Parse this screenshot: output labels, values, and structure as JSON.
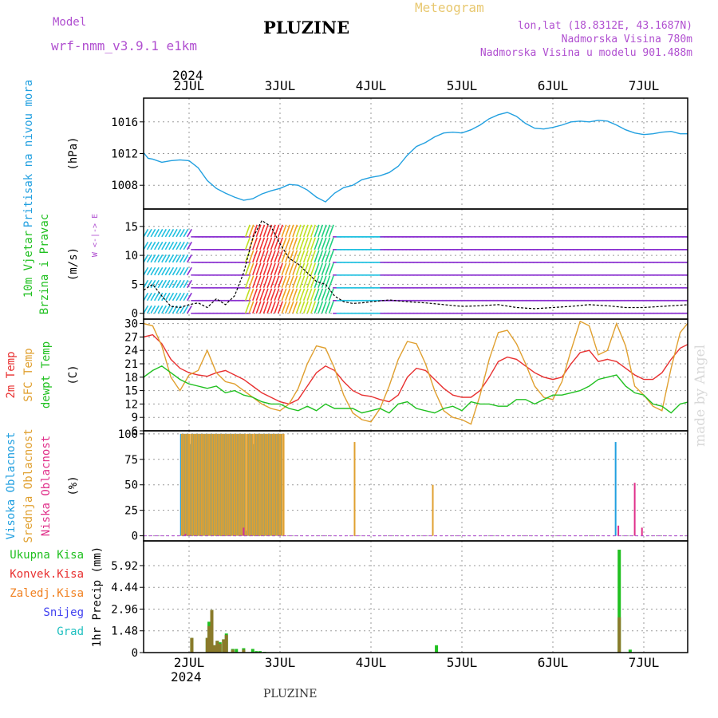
{
  "header": {
    "model_label": "Model",
    "model_name": "wrf-nmm_v3.9.1 e1km",
    "title": "PLUZINE",
    "product": "Meteogram",
    "lonlat": "lon,lat (18.8312E, 43.1687N)",
    "altitude": "Nadmorska Visina 780m",
    "model_altitude": "Nadmorska Visina u modelu 901.488m",
    "footer": "PLUZINE",
    "watermark": "made by Angel",
    "year_top": "2024",
    "year_bottom": "2024"
  },
  "colors": {
    "purple": "#b04fd0",
    "gold": "#e8c870",
    "pressure": "#22a0e0",
    "temp2m": "#e83030",
    "sfc": "#e0a030",
    "dewpt": "#20c020",
    "grid": "#9a9a9a"
  },
  "chart_data": [
    {
      "type": "line",
      "id": "pressure",
      "ylabel_lines": [
        "Pritisak na nivou mora"
      ],
      "ylabel_colors": [
        "#22a0e0"
      ],
      "unit": "(hPa)",
      "ylim": [
        1005,
        1019
      ],
      "yticks": [
        1008,
        1012,
        1016
      ],
      "x_categories": [
        "2JUL",
        "3JUL",
        "4JUL",
        "5JUL",
        "6JUL",
        "7JUL"
      ],
      "series": [
        {
          "color": "#22a0e0",
          "x": [
            -0.5,
            -0.45,
            -0.4,
            -0.3,
            -0.2,
            -0.1,
            0,
            0.1,
            0.2,
            0.3,
            0.4,
            0.5,
            0.6,
            0.7,
            0.8,
            0.9,
            1,
            1.1,
            1.2,
            1.3,
            1.4,
            1.5,
            1.6,
            1.7,
            1.8,
            1.9,
            2,
            2.1,
            2.2,
            2.3,
            2.4,
            2.5,
            2.6,
            2.7,
            2.8,
            2.9,
            3,
            3.1,
            3.2,
            3.3,
            3.4,
            3.5,
            3.6,
            3.7,
            3.8,
            3.9,
            4,
            4.1,
            4.2,
            4.3,
            4.4,
            4.5,
            4.6,
            4.7,
            4.8,
            4.9,
            5,
            5.1,
            5.2,
            5.3,
            5.4,
            5.5
          ],
          "y": [
            1012.1,
            1011.4,
            1011.3,
            1010.9,
            1011.1,
            1011.2,
            1011.1,
            1010.2,
            1008.6,
            1007.6,
            1007.0,
            1006.5,
            1006.1,
            1006.3,
            1006.9,
            1007.3,
            1007.6,
            1008.1,
            1008.0,
            1007.4,
            1006.5,
            1005.9,
            1007.0,
            1007.7,
            1008.0,
            1008.7,
            1009.0,
            1009.2,
            1009.6,
            1010.4,
            1011.8,
            1012.9,
            1013.4,
            1014.1,
            1014.6,
            1014.7,
            1014.6,
            1015.0,
            1015.6,
            1016.4,
            1016.9,
            1017.2,
            1016.7,
            1015.8,
            1015.2,
            1015.1,
            1015.3,
            1015.6,
            1016.0,
            1016.1,
            1016.0,
            1016.2,
            1016.1,
            1015.6,
            1015.0,
            1014.6,
            1014.4,
            1014.5,
            1014.7,
            1014.8,
            1014.5,
            1014.5
          ]
        }
      ]
    },
    {
      "type": "line",
      "id": "wind",
      "ylabel_lines": [
        "10m Vjetar",
        "Brzina i Pravac"
      ],
      "ylabel_colors": [
        "#20c020",
        "#20c020"
      ],
      "unit": "(m/s)",
      "compass": "W <-|-> E",
      "ylim": [
        -1,
        18
      ],
      "yticks": [
        0,
        5,
        10,
        15
      ],
      "series": [
        {
          "name": "speed",
          "color": "#000000",
          "x": [
            -0.5,
            -0.4,
            -0.3,
            -0.2,
            -0.1,
            0,
            0.1,
            0.2,
            0.3,
            0.4,
            0.5,
            0.6,
            0.7,
            0.8,
            0.9,
            1,
            1.1,
            1.2,
            1.3,
            1.4,
            1.5,
            1.6,
            1.7,
            1.8,
            1.9,
            2,
            2.2,
            2.4,
            2.6,
            2.8,
            3,
            3.2,
            3.4,
            3.6,
            3.8,
            4,
            4.2,
            4.4,
            4.6,
            4.8,
            5,
            5.2,
            5.5
          ],
          "y": [
            4,
            5,
            3,
            1.2,
            1,
            1.5,
            1.8,
            1,
            2.5,
            1.5,
            3,
            7,
            13,
            16,
            15,
            12,
            9.5,
            8.5,
            7,
            5.5,
            5,
            3,
            2,
            1.7,
            1.8,
            2,
            2.3,
            2,
            1.8,
            1.5,
            1.2,
            1.3,
            1.5,
            1,
            0.8,
            1,
            1.2,
            1.5,
            1.3,
            1,
            1,
            1.2,
            1.5
          ]
        }
      ]
    },
    {
      "type": "line",
      "id": "temperature",
      "ylabel_lines": [
        "2m Temp",
        "SFC Temp",
        "dewpt Temp"
      ],
      "ylabel_colors": [
        "#e83030",
        "#e0a030",
        "#20c020"
      ],
      "unit": "(C)",
      "ylim": [
        6,
        31
      ],
      "yticks": [
        6,
        9,
        12,
        15,
        18,
        21,
        24,
        27,
        30
      ],
      "series": [
        {
          "name": "2m Temp",
          "color": "#e83030",
          "x": [
            -0.5,
            -0.4,
            -0.3,
            -0.2,
            -0.1,
            0,
            0.1,
            0.2,
            0.3,
            0.4,
            0.5,
            0.6,
            0.7,
            0.8,
            0.9,
            1,
            1.1,
            1.2,
            1.3,
            1.4,
            1.5,
            1.6,
            1.7,
            1.8,
            1.9,
            2,
            2.1,
            2.2,
            2.3,
            2.4,
            2.5,
            2.6,
            2.7,
            2.8,
            2.9,
            3,
            3.1,
            3.2,
            3.3,
            3.4,
            3.5,
            3.6,
            3.7,
            3.8,
            3.9,
            4,
            4.1,
            4.2,
            4.3,
            4.4,
            4.5,
            4.6,
            4.7,
            4.8,
            4.9,
            5,
            5.1,
            5.2,
            5.3,
            5.4,
            5.5
          ],
          "y": [
            27,
            27.5,
            25.5,
            22,
            20,
            19,
            18.5,
            18.2,
            19,
            19.5,
            18.5,
            17.5,
            16,
            14.5,
            13.5,
            12.5,
            12,
            13,
            16,
            19,
            20.5,
            19.5,
            17,
            15,
            14,
            13.7,
            13,
            12.5,
            14,
            18,
            20,
            19.5,
            17.5,
            15.5,
            14,
            13.5,
            13.5,
            15,
            18,
            21.5,
            22.5,
            22,
            20.5,
            19,
            18,
            17.5,
            18,
            21,
            23.5,
            24,
            21.5,
            22,
            21.5,
            20,
            18.5,
            17.5,
            17.5,
            19,
            22,
            24.5,
            25.5
          ]
        },
        {
          "name": "SFC Temp",
          "color": "#e0a030",
          "x": [
            -0.5,
            -0.4,
            -0.3,
            -0.2,
            -0.1,
            0,
            0.1,
            0.2,
            0.3,
            0.4,
            0.5,
            0.6,
            0.7,
            0.8,
            0.9,
            1,
            1.1,
            1.2,
            1.3,
            1.4,
            1.5,
            1.6,
            1.7,
            1.8,
            1.9,
            2,
            2.1,
            2.2,
            2.3,
            2.4,
            2.5,
            2.6,
            2.7,
            2.8,
            2.9,
            3,
            3.1,
            3.2,
            3.3,
            3.4,
            3.5,
            3.6,
            3.7,
            3.8,
            3.9,
            4,
            4.1,
            4.2,
            4.3,
            4.4,
            4.5,
            4.6,
            4.7,
            4.8,
            4.9,
            5,
            5.1,
            5.2,
            5.3,
            5.4,
            5.5
          ],
          "y": [
            30,
            29.5,
            25,
            18,
            15,
            18.5,
            19.5,
            24,
            19,
            17,
            16.5,
            15,
            13.5,
            12,
            11,
            10.5,
            12,
            15.5,
            21,
            25,
            24.5,
            20,
            14,
            10,
            8.5,
            8,
            11,
            16,
            22,
            26,
            25.5,
            21,
            15,
            10.5,
            9,
            8.5,
            7.5,
            14,
            22,
            28,
            28.5,
            25.5,
            21,
            16,
            13.5,
            13,
            17,
            24,
            30.5,
            29.5,
            23,
            24,
            30,
            25,
            16,
            14,
            11.5,
            10.5,
            20,
            28,
            30.5
          ]
        },
        {
          "name": "dewpt Temp",
          "color": "#20c020",
          "x": [
            -0.5,
            -0.4,
            -0.3,
            -0.2,
            -0.1,
            0,
            0.1,
            0.2,
            0.3,
            0.4,
            0.5,
            0.6,
            0.7,
            0.8,
            0.9,
            1,
            1.1,
            1.2,
            1.3,
            1.4,
            1.5,
            1.6,
            1.7,
            1.8,
            1.9,
            2,
            2.1,
            2.2,
            2.3,
            2.4,
            2.5,
            2.6,
            2.7,
            2.8,
            2.9,
            3,
            3.1,
            3.2,
            3.3,
            3.4,
            3.5,
            3.6,
            3.7,
            3.8,
            3.9,
            4,
            4.1,
            4.2,
            4.3,
            4.4,
            4.5,
            4.6,
            4.7,
            4.8,
            4.9,
            5,
            5.1,
            5.2,
            5.3,
            5.4,
            5.5
          ],
          "y": [
            18,
            19.5,
            20.5,
            19,
            17.5,
            16.5,
            16,
            15.5,
            16,
            14.5,
            15,
            14,
            13.5,
            12.5,
            12,
            12,
            11,
            10.5,
            11.5,
            10.5,
            12,
            11,
            11,
            11,
            10,
            10.5,
            11,
            10,
            12,
            12.5,
            11,
            10.5,
            10,
            11,
            11.5,
            10.5,
            12.5,
            12,
            12,
            11.5,
            11.5,
            13,
            13,
            12,
            13,
            14,
            14,
            14.5,
            15,
            16,
            17.5,
            18,
            18.5,
            16,
            14.5,
            14,
            12,
            11.5,
            10,
            12,
            12.5
          ]
        }
      ]
    },
    {
      "type": "bar",
      "id": "clouds",
      "ylabel_lines": [
        "Visoka Oblacnost",
        "Srednja Oblacnost",
        "Niska Oblacnost"
      ],
      "ylabel_colors": [
        "#22a0e0",
        "#e0a030",
        "#e0308a"
      ],
      "unit": "(%)",
      "ylim": [
        -5,
        103
      ],
      "yticks": [
        0,
        25,
        50,
        75,
        100
      ],
      "series": [
        {
          "name": "Visoka Oblacnost",
          "color": "#22a0e0",
          "x": [
            -0.09,
            -0.07,
            -0.05,
            -0.03,
            -0.01,
            0.01,
            0.03,
            0.05,
            0.07,
            0.09,
            0.11,
            0.13,
            0.15,
            0.17,
            0.19,
            0.21,
            0.23,
            0.25,
            0.27,
            0.29,
            0.31,
            0.33,
            0.35,
            0.37,
            0.39,
            0.41,
            0.43,
            0.45,
            0.47,
            0.49,
            0.51,
            0.53,
            0.55,
            0.57,
            0.59,
            0.61,
            0.63,
            0.65,
            0.67,
            0.69,
            0.71,
            0.73,
            0.75,
            0.77,
            0.79,
            0.81,
            0.83,
            0.85,
            0.87,
            0.89,
            0.91,
            0.93,
            0.95,
            0.97,
            0.99,
            1.01,
            4.69
          ],
          "y": [
            100,
            100,
            100,
            100,
            100,
            90,
            100,
            100,
            100,
            100,
            100,
            100,
            100,
            100,
            100,
            100,
            100,
            100,
            100,
            100,
            100,
            100,
            100,
            100,
            100,
            100,
            100,
            100,
            100,
            100,
            100,
            100,
            100,
            100,
            100,
            100,
            5,
            100,
            100,
            100,
            90,
            100,
            100,
            100,
            100,
            100,
            100,
            100,
            100,
            100,
            100,
            100,
            100,
            100,
            100,
            100,
            92
          ]
        },
        {
          "name": "Srednja Oblacnost",
          "color": "#e0a030",
          "x": [
            -0.08,
            -0.06,
            -0.04,
            -0.02,
            0,
            0.02,
            0.04,
            0.06,
            0.08,
            0.1,
            0.12,
            0.14,
            0.16,
            0.18,
            0.2,
            0.22,
            0.24,
            0.26,
            0.28,
            0.3,
            0.32,
            0.34,
            0.36,
            0.38,
            0.4,
            0.42,
            0.44,
            0.46,
            0.48,
            0.5,
            0.52,
            0.54,
            0.56,
            0.58,
            0.6,
            0.62,
            0.64,
            0.66,
            0.68,
            0.7,
            0.72,
            0.74,
            0.76,
            0.78,
            0.8,
            0.82,
            0.84,
            0.86,
            0.88,
            0.9,
            0.92,
            0.94,
            0.96,
            0.98,
            1,
            1.02,
            1.04,
            1.82,
            2.68
          ],
          "y": [
            100,
            100,
            100,
            100,
            100,
            100,
            100,
            100,
            100,
            100,
            100,
            100,
            100,
            100,
            100,
            100,
            100,
            100,
            100,
            100,
            100,
            100,
            100,
            100,
            100,
            100,
            100,
            100,
            100,
            100,
            100,
            100,
            100,
            100,
            100,
            100,
            100,
            100,
            100,
            100,
            100,
            100,
            100,
            100,
            100,
            100,
            100,
            100,
            100,
            100,
            100,
            100,
            100,
            100,
            100,
            100,
            100,
            92,
            50
          ]
        },
        {
          "name": "Niska Oblacnost",
          "color": "#e0308a",
          "x": [
            -0.04,
            0.6,
            4.72,
            4.9,
            4.98
          ],
          "y": [
            2,
            8,
            10,
            52,
            8
          ]
        }
      ]
    },
    {
      "type": "bar",
      "id": "precip",
      "ylabel_lines": [
        "Ukupna Kisa",
        "Konvek.Kisa",
        "Zaledj.Kisa",
        "Snijeg",
        "Grad"
      ],
      "ylabel_colors": [
        "#20c020",
        "#e83030",
        "#f08020",
        "#4040f0",
        "#20c0c0"
      ],
      "unit": "1hr Precip (mm)",
      "ylim": [
        0,
        7.6
      ],
      "yticks": [
        0,
        1.48,
        2.96,
        4.44,
        5.92
      ],
      "series": [
        {
          "name": "Ukupna Kisa",
          "color": "#20c020",
          "x": [
            0.03,
            0.2,
            0.22,
            0.25,
            0.28,
            0.31,
            0.34,
            0.38,
            0.41,
            0.48,
            0.52,
            0.6,
            0.7,
            0.74,
            0.78,
            0.83,
            2.72,
            4.73,
            4.85
          ],
          "y": [
            1.0,
            1.0,
            2.1,
            2.9,
            0.5,
            0.8,
            0.7,
            0.9,
            1.3,
            0.25,
            0.25,
            0.3,
            0.25,
            0.1,
            0.1,
            0.05,
            0.5,
            7.0,
            0.2
          ]
        },
        {
          "name": "Konvek.Kisa",
          "color": "#8a7a2a",
          "x": [
            0.03,
            0.2,
            0.22,
            0.25,
            0.28,
            0.31,
            0.34,
            0.38,
            0.41,
            0.48,
            0.6,
            4.73
          ],
          "y": [
            1.0,
            1.0,
            1.8,
            2.9,
            0.5,
            0.8,
            0.6,
            0.9,
            1.2,
            0.2,
            0.2,
            2.4
          ]
        }
      ]
    }
  ]
}
